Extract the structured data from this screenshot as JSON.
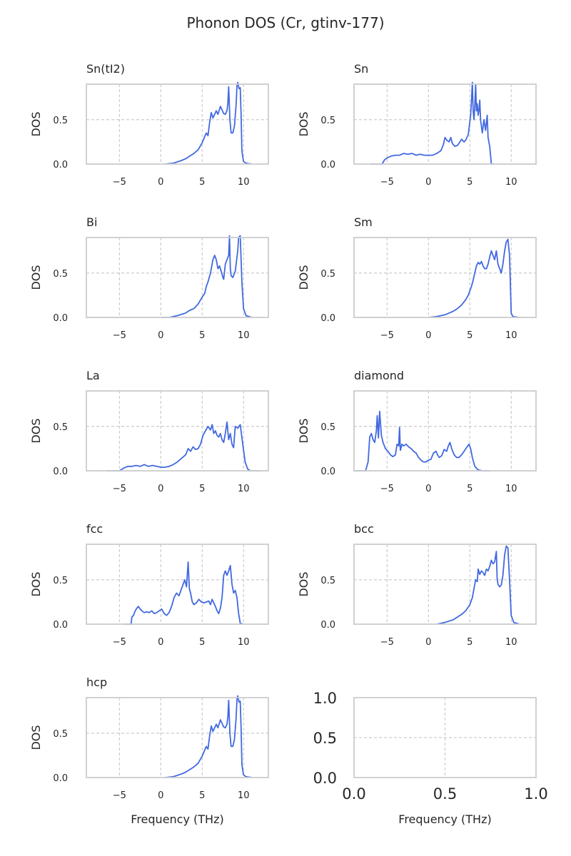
{
  "title": "Phonon DOS (Cr, gtinv-177)",
  "colors": {
    "line": "#4169E1",
    "spine": "#cccccc",
    "grid": "#cccccc",
    "text": "#262626"
  },
  "chart_data": [
    {
      "type": "line",
      "title": "Sn(tI2)",
      "xlabel": "",
      "ylabel": "DOS",
      "xlim": [
        -9,
        13
      ],
      "ylim": [
        0,
        0.9
      ],
      "xticks": [
        -5,
        0,
        5,
        10
      ],
      "yticks": [
        0.0,
        0.5
      ],
      "grid": true,
      "series": [
        {
          "x": [
            0.5,
            1.5,
            2.5,
            3.0,
            3.5,
            4.0,
            4.5,
            5.0,
            5.3,
            5.5,
            5.7,
            5.9,
            6.1,
            6.3,
            6.5,
            6.7,
            6.9,
            7.2,
            7.4,
            7.6,
            7.8,
            8.0,
            8.1,
            8.2,
            8.35,
            8.5,
            8.7,
            8.9,
            9.1,
            9.2,
            9.3,
            9.45,
            9.6,
            9.7,
            9.8,
            9.9,
            10.0,
            10.3,
            11.0
          ],
          "y": [
            0.0,
            0.01,
            0.04,
            0.06,
            0.09,
            0.12,
            0.16,
            0.24,
            0.31,
            0.35,
            0.32,
            0.47,
            0.58,
            0.52,
            0.56,
            0.6,
            0.56,
            0.65,
            0.61,
            0.57,
            0.56,
            0.6,
            0.68,
            0.87,
            0.5,
            0.35,
            0.35,
            0.43,
            0.67,
            0.88,
            0.92,
            0.85,
            0.86,
            0.55,
            0.15,
            0.08,
            0.03,
            0.01,
            0.0
          ]
        }
      ]
    },
    {
      "type": "line",
      "title": "Sn",
      "xlabel": "",
      "ylabel": "DOS",
      "xlim": [
        -9,
        13
      ],
      "ylim": [
        0,
        0.9
      ],
      "xticks": [
        -5,
        0,
        5,
        10
      ],
      "yticks": [
        0.0,
        0.5
      ],
      "grid": true,
      "series": [
        {
          "x": [
            -7.0,
            -5.6,
            -5.3,
            -5.0,
            -4.5,
            -4.0,
            -3.5,
            -3.0,
            -2.5,
            -2.0,
            -1.5,
            -1.0,
            -0.5,
            0.0,
            0.5,
            1.0,
            1.5,
            1.8,
            2.0,
            2.2,
            2.5,
            2.7,
            2.9,
            3.2,
            3.5,
            3.8,
            4.0,
            4.3,
            4.5,
            4.8,
            5.0,
            5.1,
            5.2,
            5.3,
            5.4,
            5.5,
            5.6,
            5.7,
            5.8,
            5.9,
            6.0,
            6.1,
            6.2,
            6.3,
            6.5,
            6.7,
            6.9,
            7.1,
            7.2,
            7.4,
            7.6,
            8.0
          ],
          "y": [
            0.0,
            0.0,
            0.05,
            0.07,
            0.09,
            0.1,
            0.1,
            0.12,
            0.11,
            0.12,
            0.1,
            0.11,
            0.1,
            0.1,
            0.1,
            0.12,
            0.15,
            0.22,
            0.3,
            0.27,
            0.25,
            0.3,
            0.23,
            0.2,
            0.21,
            0.25,
            0.28,
            0.25,
            0.27,
            0.33,
            0.48,
            0.55,
            0.72,
            0.95,
            0.6,
            0.5,
            0.65,
            0.9,
            0.6,
            0.68,
            0.55,
            0.6,
            0.72,
            0.5,
            0.35,
            0.5,
            0.38,
            0.55,
            0.3,
            0.2,
            0.0,
            0.0
          ]
        }
      ]
    },
    {
      "type": "line",
      "title": "Bi",
      "xlabel": "",
      "ylabel": "DOS",
      "xlim": [
        -9,
        13
      ],
      "ylim": [
        0,
        0.9
      ],
      "xticks": [
        -5,
        0,
        5,
        10
      ],
      "yticks": [
        0.0,
        0.5
      ],
      "grid": true,
      "series": [
        {
          "x": [
            0.0,
            1.0,
            2.0,
            3.0,
            3.5,
            4.0,
            4.5,
            5.0,
            5.3,
            5.5,
            5.7,
            6.0,
            6.3,
            6.5,
            6.7,
            6.9,
            7.1,
            7.3,
            7.5,
            7.6,
            7.8,
            8.0,
            8.2,
            8.3,
            8.4,
            8.5,
            8.7,
            9.0,
            9.3,
            9.4,
            9.6,
            9.8,
            10.0,
            10.3,
            11.0
          ],
          "y": [
            0.0,
            0.0,
            0.02,
            0.05,
            0.08,
            0.1,
            0.15,
            0.23,
            0.27,
            0.35,
            0.4,
            0.5,
            0.65,
            0.7,
            0.65,
            0.55,
            0.58,
            0.52,
            0.45,
            0.43,
            0.6,
            0.65,
            0.7,
            0.92,
            0.55,
            0.47,
            0.45,
            0.52,
            0.75,
            0.9,
            0.95,
            0.4,
            0.1,
            0.02,
            0.0
          ]
        }
      ]
    },
    {
      "type": "line",
      "title": "Sm",
      "xlabel": "",
      "ylabel": "DOS",
      "xlim": [
        -9,
        13
      ],
      "ylim": [
        0,
        0.9
      ],
      "xticks": [
        -5,
        0,
        5,
        10
      ],
      "yticks": [
        0.0,
        0.5
      ],
      "grid": true,
      "series": [
        {
          "x": [
            0.0,
            1.0,
            1.5,
            2.0,
            2.5,
            3.0,
            3.5,
            4.0,
            4.5,
            4.8,
            5.0,
            5.2,
            5.4,
            5.6,
            5.8,
            6.0,
            6.2,
            6.4,
            6.6,
            6.8,
            7.0,
            7.2,
            7.4,
            7.6,
            7.8,
            8.0,
            8.2,
            8.4,
            8.6,
            8.8,
            9.0,
            9.2,
            9.4,
            9.6,
            9.8,
            10.0,
            10.2,
            11.0
          ],
          "y": [
            0.0,
            0.01,
            0.02,
            0.03,
            0.05,
            0.07,
            0.1,
            0.14,
            0.2,
            0.25,
            0.3,
            0.35,
            0.42,
            0.5,
            0.58,
            0.62,
            0.6,
            0.63,
            0.58,
            0.55,
            0.55,
            0.6,
            0.68,
            0.75,
            0.7,
            0.65,
            0.75,
            0.6,
            0.55,
            0.5,
            0.6,
            0.75,
            0.85,
            0.88,
            0.7,
            0.05,
            0.01,
            0.0
          ]
        }
      ]
    },
    {
      "type": "line",
      "title": "La",
      "xlabel": "",
      "ylabel": "DOS",
      "xlim": [
        -9,
        13
      ],
      "ylim": [
        0,
        0.9
      ],
      "xticks": [
        -5,
        0,
        5,
        10
      ],
      "yticks": [
        0.0,
        0.5
      ],
      "grid": true,
      "series": [
        {
          "x": [
            -6.5,
            -5.0,
            -4.5,
            -4.0,
            -3.5,
            -3.0,
            -2.5,
            -2.0,
            -1.5,
            -1.0,
            -0.5,
            0.0,
            0.5,
            1.0,
            1.5,
            2.0,
            2.5,
            3.0,
            3.3,
            3.6,
            3.9,
            4.2,
            4.5,
            4.8,
            5.1,
            5.4,
            5.7,
            6.0,
            6.2,
            6.4,
            6.6,
            6.8,
            7.0,
            7.2,
            7.4,
            7.6,
            7.8,
            8.0,
            8.2,
            8.4,
            8.6,
            8.8,
            9.0,
            9.3,
            9.6,
            9.9,
            10.2,
            10.5,
            10.8,
            11.2,
            12.0
          ],
          "y": [
            0.0,
            0.0,
            0.03,
            0.05,
            0.05,
            0.06,
            0.05,
            0.07,
            0.05,
            0.06,
            0.05,
            0.04,
            0.04,
            0.05,
            0.07,
            0.1,
            0.14,
            0.18,
            0.25,
            0.22,
            0.27,
            0.24,
            0.25,
            0.3,
            0.4,
            0.45,
            0.5,
            0.46,
            0.52,
            0.42,
            0.45,
            0.4,
            0.38,
            0.42,
            0.35,
            0.32,
            0.42,
            0.55,
            0.35,
            0.42,
            0.3,
            0.26,
            0.5,
            0.48,
            0.52,
            0.3,
            0.1,
            0.02,
            0.0,
            0.0,
            0.0
          ]
        }
      ]
    },
    {
      "type": "line",
      "title": "diamond",
      "xlabel": "",
      "ylabel": "DOS",
      "xlim": [
        -9,
        13
      ],
      "ylim": [
        0,
        0.9
      ],
      "xticks": [
        -5,
        0,
        5,
        10
      ],
      "yticks": [
        0.0,
        0.5
      ],
      "grid": true,
      "series": [
        {
          "x": [
            -9.0,
            -7.6,
            -7.3,
            -7.1,
            -6.9,
            -6.7,
            -6.5,
            -6.3,
            -6.2,
            -6.05,
            -5.9,
            -5.7,
            -5.5,
            -5.2,
            -4.9,
            -4.6,
            -4.3,
            -4.0,
            -3.8,
            -3.6,
            -3.5,
            -3.4,
            -3.2,
            -3.0,
            -2.7,
            -2.4,
            -2.1,
            -1.8,
            -1.5,
            -1.2,
            -0.9,
            -0.6,
            -0.3,
            0.0,
            0.3,
            0.6,
            0.9,
            1.1,
            1.3,
            1.6,
            1.9,
            2.2,
            2.4,
            2.6,
            2.8,
            3.1,
            3.4,
            3.7,
            4.0,
            4.3,
            4.6,
            4.9,
            5.1,
            5.3,
            5.6,
            6.0,
            6.5,
            7.0,
            7.2,
            7.5
          ],
          "y": [
            0.0,
            0.0,
            0.1,
            0.38,
            0.42,
            0.35,
            0.32,
            0.45,
            0.62,
            0.37,
            0.67,
            0.4,
            0.32,
            0.25,
            0.22,
            0.18,
            0.16,
            0.18,
            0.3,
            0.28,
            0.49,
            0.23,
            0.3,
            0.28,
            0.3,
            0.27,
            0.25,
            0.22,
            0.2,
            0.15,
            0.12,
            0.1,
            0.1,
            0.12,
            0.13,
            0.2,
            0.22,
            0.18,
            0.15,
            0.17,
            0.24,
            0.22,
            0.28,
            0.32,
            0.25,
            0.18,
            0.15,
            0.15,
            0.18,
            0.22,
            0.26,
            0.3,
            0.25,
            0.15,
            0.05,
            0.01,
            0.0,
            0.0,
            0.0,
            0.0
          ]
        }
      ]
    },
    {
      "type": "line",
      "title": "fcc",
      "xlabel": "",
      "ylabel": "DOS",
      "xlim": [
        -9,
        13
      ],
      "ylim": [
        0,
        0.9
      ],
      "xticks": [
        -5,
        0,
        5,
        10
      ],
      "yticks": [
        0.0,
        0.5
      ],
      "grid": true,
      "series": [
        {
          "x": [
            -4.5,
            -3.6,
            -3.5,
            -3.3,
            -3.1,
            -2.9,
            -2.7,
            -2.5,
            -2.3,
            -2.0,
            -1.7,
            -1.4,
            -1.1,
            -0.8,
            -0.5,
            -0.2,
            0.1,
            0.4,
            0.7,
            1.0,
            1.3,
            1.6,
            1.9,
            2.2,
            2.5,
            2.7,
            2.9,
            3.1,
            3.3,
            3.45,
            3.6,
            3.8,
            4.0,
            4.3,
            4.6,
            4.9,
            5.2,
            5.5,
            5.8,
            6.0,
            6.2,
            6.4,
            6.6,
            6.8,
            7.0,
            7.2,
            7.4,
            7.6,
            7.8,
            8.0,
            8.2,
            8.4,
            8.6,
            8.8,
            9.0,
            9.2,
            9.4,
            9.6,
            10.0
          ],
          "y": [
            0.0,
            0.0,
            0.08,
            0.1,
            0.15,
            0.18,
            0.2,
            0.17,
            0.15,
            0.13,
            0.14,
            0.13,
            0.15,
            0.12,
            0.13,
            0.15,
            0.17,
            0.12,
            0.1,
            0.13,
            0.2,
            0.3,
            0.35,
            0.32,
            0.4,
            0.45,
            0.5,
            0.42,
            0.7,
            0.4,
            0.35,
            0.25,
            0.22,
            0.24,
            0.28,
            0.25,
            0.24,
            0.25,
            0.26,
            0.22,
            0.28,
            0.24,
            0.2,
            0.15,
            0.12,
            0.18,
            0.3,
            0.55,
            0.6,
            0.55,
            0.6,
            0.66,
            0.45,
            0.35,
            0.38,
            0.3,
            0.12,
            0.01,
            0.0
          ]
        }
      ]
    },
    {
      "type": "line",
      "title": "bcc",
      "xlabel": "",
      "ylabel": "DOS",
      "xlim": [
        -9,
        13
      ],
      "ylim": [
        0,
        0.9
      ],
      "xticks": [
        -5,
        0,
        5,
        10
      ],
      "yticks": [
        0.0,
        0.5
      ],
      "grid": true,
      "series": [
        {
          "x": [
            1.0,
            2.0,
            3.0,
            3.5,
            4.0,
            4.5,
            5.0,
            5.3,
            5.5,
            5.7,
            5.9,
            6.0,
            6.2,
            6.4,
            6.6,
            6.8,
            7.0,
            7.2,
            7.4,
            7.6,
            7.8,
            8.0,
            8.2,
            8.3,
            8.4,
            8.6,
            8.8,
            9.0,
            9.2,
            9.4,
            9.6,
            9.8,
            10.0,
            10.3,
            11.0
          ],
          "y": [
            0.0,
            0.02,
            0.05,
            0.08,
            0.11,
            0.15,
            0.22,
            0.3,
            0.4,
            0.5,
            0.48,
            0.62,
            0.56,
            0.6,
            0.58,
            0.55,
            0.62,
            0.6,
            0.65,
            0.72,
            0.68,
            0.7,
            0.82,
            0.52,
            0.45,
            0.42,
            0.44,
            0.55,
            0.78,
            0.88,
            0.86,
            0.5,
            0.1,
            0.02,
            0.0
          ]
        }
      ]
    },
    {
      "type": "line",
      "title": "hcp",
      "xlabel": "Frequency (THz)",
      "ylabel": "DOS",
      "xlim": [
        -9,
        13
      ],
      "ylim": [
        0,
        0.9
      ],
      "xticks": [
        -5,
        0,
        5,
        10
      ],
      "yticks": [
        0.0,
        0.5
      ],
      "grid": true,
      "series": [
        {
          "x": [
            0.5,
            1.5,
            2.5,
            3.0,
            3.5,
            4.0,
            4.5,
            5.0,
            5.3,
            5.5,
            5.7,
            5.9,
            6.1,
            6.3,
            6.5,
            6.7,
            6.9,
            7.2,
            7.4,
            7.6,
            7.8,
            8.0,
            8.1,
            8.2,
            8.35,
            8.5,
            8.7,
            8.9,
            9.1,
            9.2,
            9.3,
            9.45,
            9.6,
            9.7,
            9.8,
            9.9,
            10.0,
            10.3,
            11.0
          ],
          "y": [
            0.0,
            0.01,
            0.04,
            0.06,
            0.09,
            0.12,
            0.16,
            0.24,
            0.31,
            0.35,
            0.32,
            0.47,
            0.58,
            0.52,
            0.56,
            0.6,
            0.56,
            0.65,
            0.61,
            0.57,
            0.56,
            0.6,
            0.68,
            0.87,
            0.5,
            0.35,
            0.35,
            0.43,
            0.67,
            0.88,
            0.92,
            0.85,
            0.86,
            0.55,
            0.15,
            0.08,
            0.03,
            0.01,
            0.0
          ]
        }
      ]
    },
    {
      "type": "line",
      "title": "",
      "xlabel": "Frequency (THz)",
      "ylabel": "",
      "xlim": [
        0,
        1
      ],
      "ylim": [
        0,
        1
      ],
      "xticks": [
        0.0,
        0.5,
        1.0
      ],
      "yticks": [
        0.0,
        0.5,
        1.0
      ],
      "grid": true,
      "series": []
    }
  ]
}
